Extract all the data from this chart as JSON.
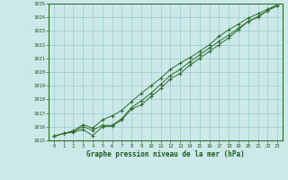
{
  "xlabel": "Graphe pression niveau de la mer (hPa)",
  "x": [
    0,
    1,
    2,
    3,
    4,
    5,
    6,
    7,
    8,
    9,
    10,
    11,
    12,
    13,
    14,
    15,
    16,
    17,
    18,
    19,
    20,
    21,
    22,
    23
  ],
  "line1": [
    1015.3,
    1015.5,
    1015.6,
    1015.8,
    1015.35,
    1016.0,
    1016.05,
    1016.5,
    1017.3,
    1017.6,
    1018.2,
    1018.8,
    1019.5,
    1019.9,
    1020.5,
    1021.0,
    1021.5,
    1022.0,
    1022.5,
    1023.1,
    1023.7,
    1024.0,
    1024.5,
    1024.85
  ],
  "line2": [
    1015.3,
    1015.5,
    1015.65,
    1016.0,
    1015.75,
    1016.1,
    1016.1,
    1016.6,
    1017.4,
    1017.9,
    1018.45,
    1019.1,
    1019.75,
    1020.2,
    1020.75,
    1021.25,
    1021.75,
    1022.25,
    1022.7,
    1023.2,
    1023.7,
    1024.05,
    1024.5,
    1024.85
  ],
  "line3": [
    1015.3,
    1015.5,
    1015.7,
    1016.15,
    1015.9,
    1016.5,
    1016.8,
    1017.2,
    1017.85,
    1018.45,
    1019.0,
    1019.55,
    1020.2,
    1020.65,
    1021.05,
    1021.5,
    1022.0,
    1022.6,
    1023.1,
    1023.5,
    1023.95,
    1024.25,
    1024.6,
    1024.9
  ],
  "ylim": [
    1015,
    1025
  ],
  "yticks": [
    1015,
    1016,
    1017,
    1018,
    1019,
    1020,
    1021,
    1022,
    1023,
    1024,
    1025
  ],
  "line_color": "#2d6e2d",
  "bg_color": "#cce8e8",
  "grid_color": "#99cccc",
  "label_color": "#1a5c1a",
  "spine_color": "#2d6e2d",
  "tick_color": "#1a5c1a"
}
